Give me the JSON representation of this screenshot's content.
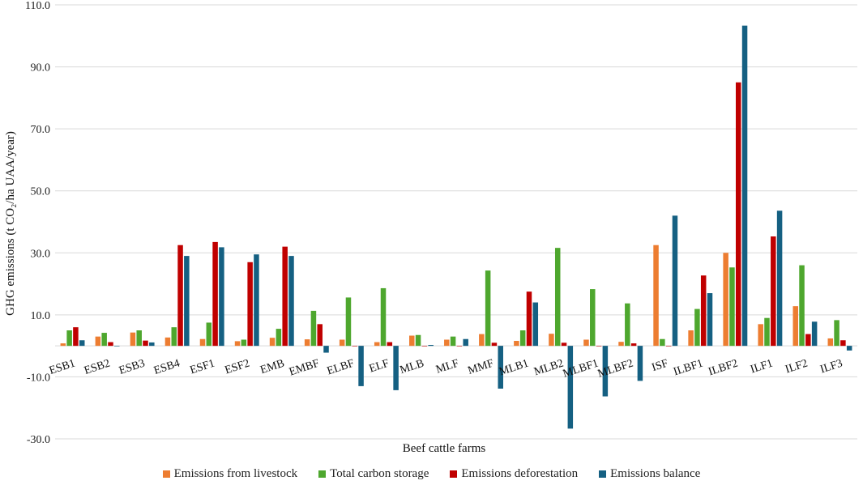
{
  "chart_data": {
    "type": "bar",
    "ylabel": "GHG emissions (t CO₂/ha UAA/year)",
    "xlabel": "Beef cattle farms",
    "ylim": [
      -30,
      110
    ],
    "yticks": [
      110,
      90,
      70,
      50,
      30,
      10,
      -10,
      -30
    ],
    "ytick_labels": [
      "110.0",
      "90.0",
      "70.0",
      "50.0",
      "30.0",
      "10.0",
      "-10.0",
      "-30.0"
    ],
    "grid": true,
    "legend_position": "bottom",
    "categories": [
      "ESB1",
      "ESB2",
      "ESB3",
      "ESB4",
      "ESF1",
      "ESF2",
      "EMB",
      "EMBF",
      "ELBF",
      "ELF",
      "MLB",
      "MLF",
      "MMF",
      "MLB1",
      "MLB2",
      "MLBF1",
      "MLBF2",
      "ISF",
      "ILBF1",
      "ILBF2",
      "ILF1",
      "ILF2",
      "ILF3"
    ],
    "series": [
      {
        "name": "Emissions from livestock",
        "color": "#ED7D31",
        "values": [
          0.8,
          3.0,
          4.3,
          2.7,
          2.2,
          1.5,
          2.6,
          2.1,
          2.0,
          1.2,
          3.3,
          2.0,
          3.8,
          1.6,
          3.9,
          2.0,
          1.3,
          32.5,
          5.0,
          30.0,
          7.0,
          12.8,
          2.4
        ]
      },
      {
        "name": "Total carbon storage",
        "color": "#4EA72E",
        "values": [
          5.0,
          4.2,
          5.0,
          6.0,
          7.5,
          2.0,
          5.5,
          11.3,
          15.6,
          18.6,
          3.5,
          3.0,
          24.3,
          5.0,
          31.6,
          18.3,
          13.7,
          2.2,
          11.9,
          25.3,
          9.0,
          26.0,
          8.3
        ]
      },
      {
        "name": "Emissions deforestation",
        "color": "#C00000",
        "values": [
          6.0,
          1.2,
          1.7,
          32.5,
          33.5,
          27.0,
          32.0,
          7.0,
          0,
          1.2,
          0,
          0,
          1.0,
          17.5,
          1.0,
          0,
          0.8,
          0,
          22.7,
          85.0,
          35.3,
          3.8,
          1.8
        ]
      },
      {
        "name": "Emissions balance",
        "color": "#156082",
        "values": [
          1.8,
          0,
          1.1,
          29.0,
          31.8,
          29.5,
          29.0,
          -2.2,
          -13.0,
          -14.3,
          0.3,
          2.2,
          -13.8,
          14.0,
          -26.7,
          -16.3,
          -11.3,
          42.0,
          17.0,
          103.3,
          43.6,
          7.8,
          -1.5
        ]
      }
    ]
  }
}
